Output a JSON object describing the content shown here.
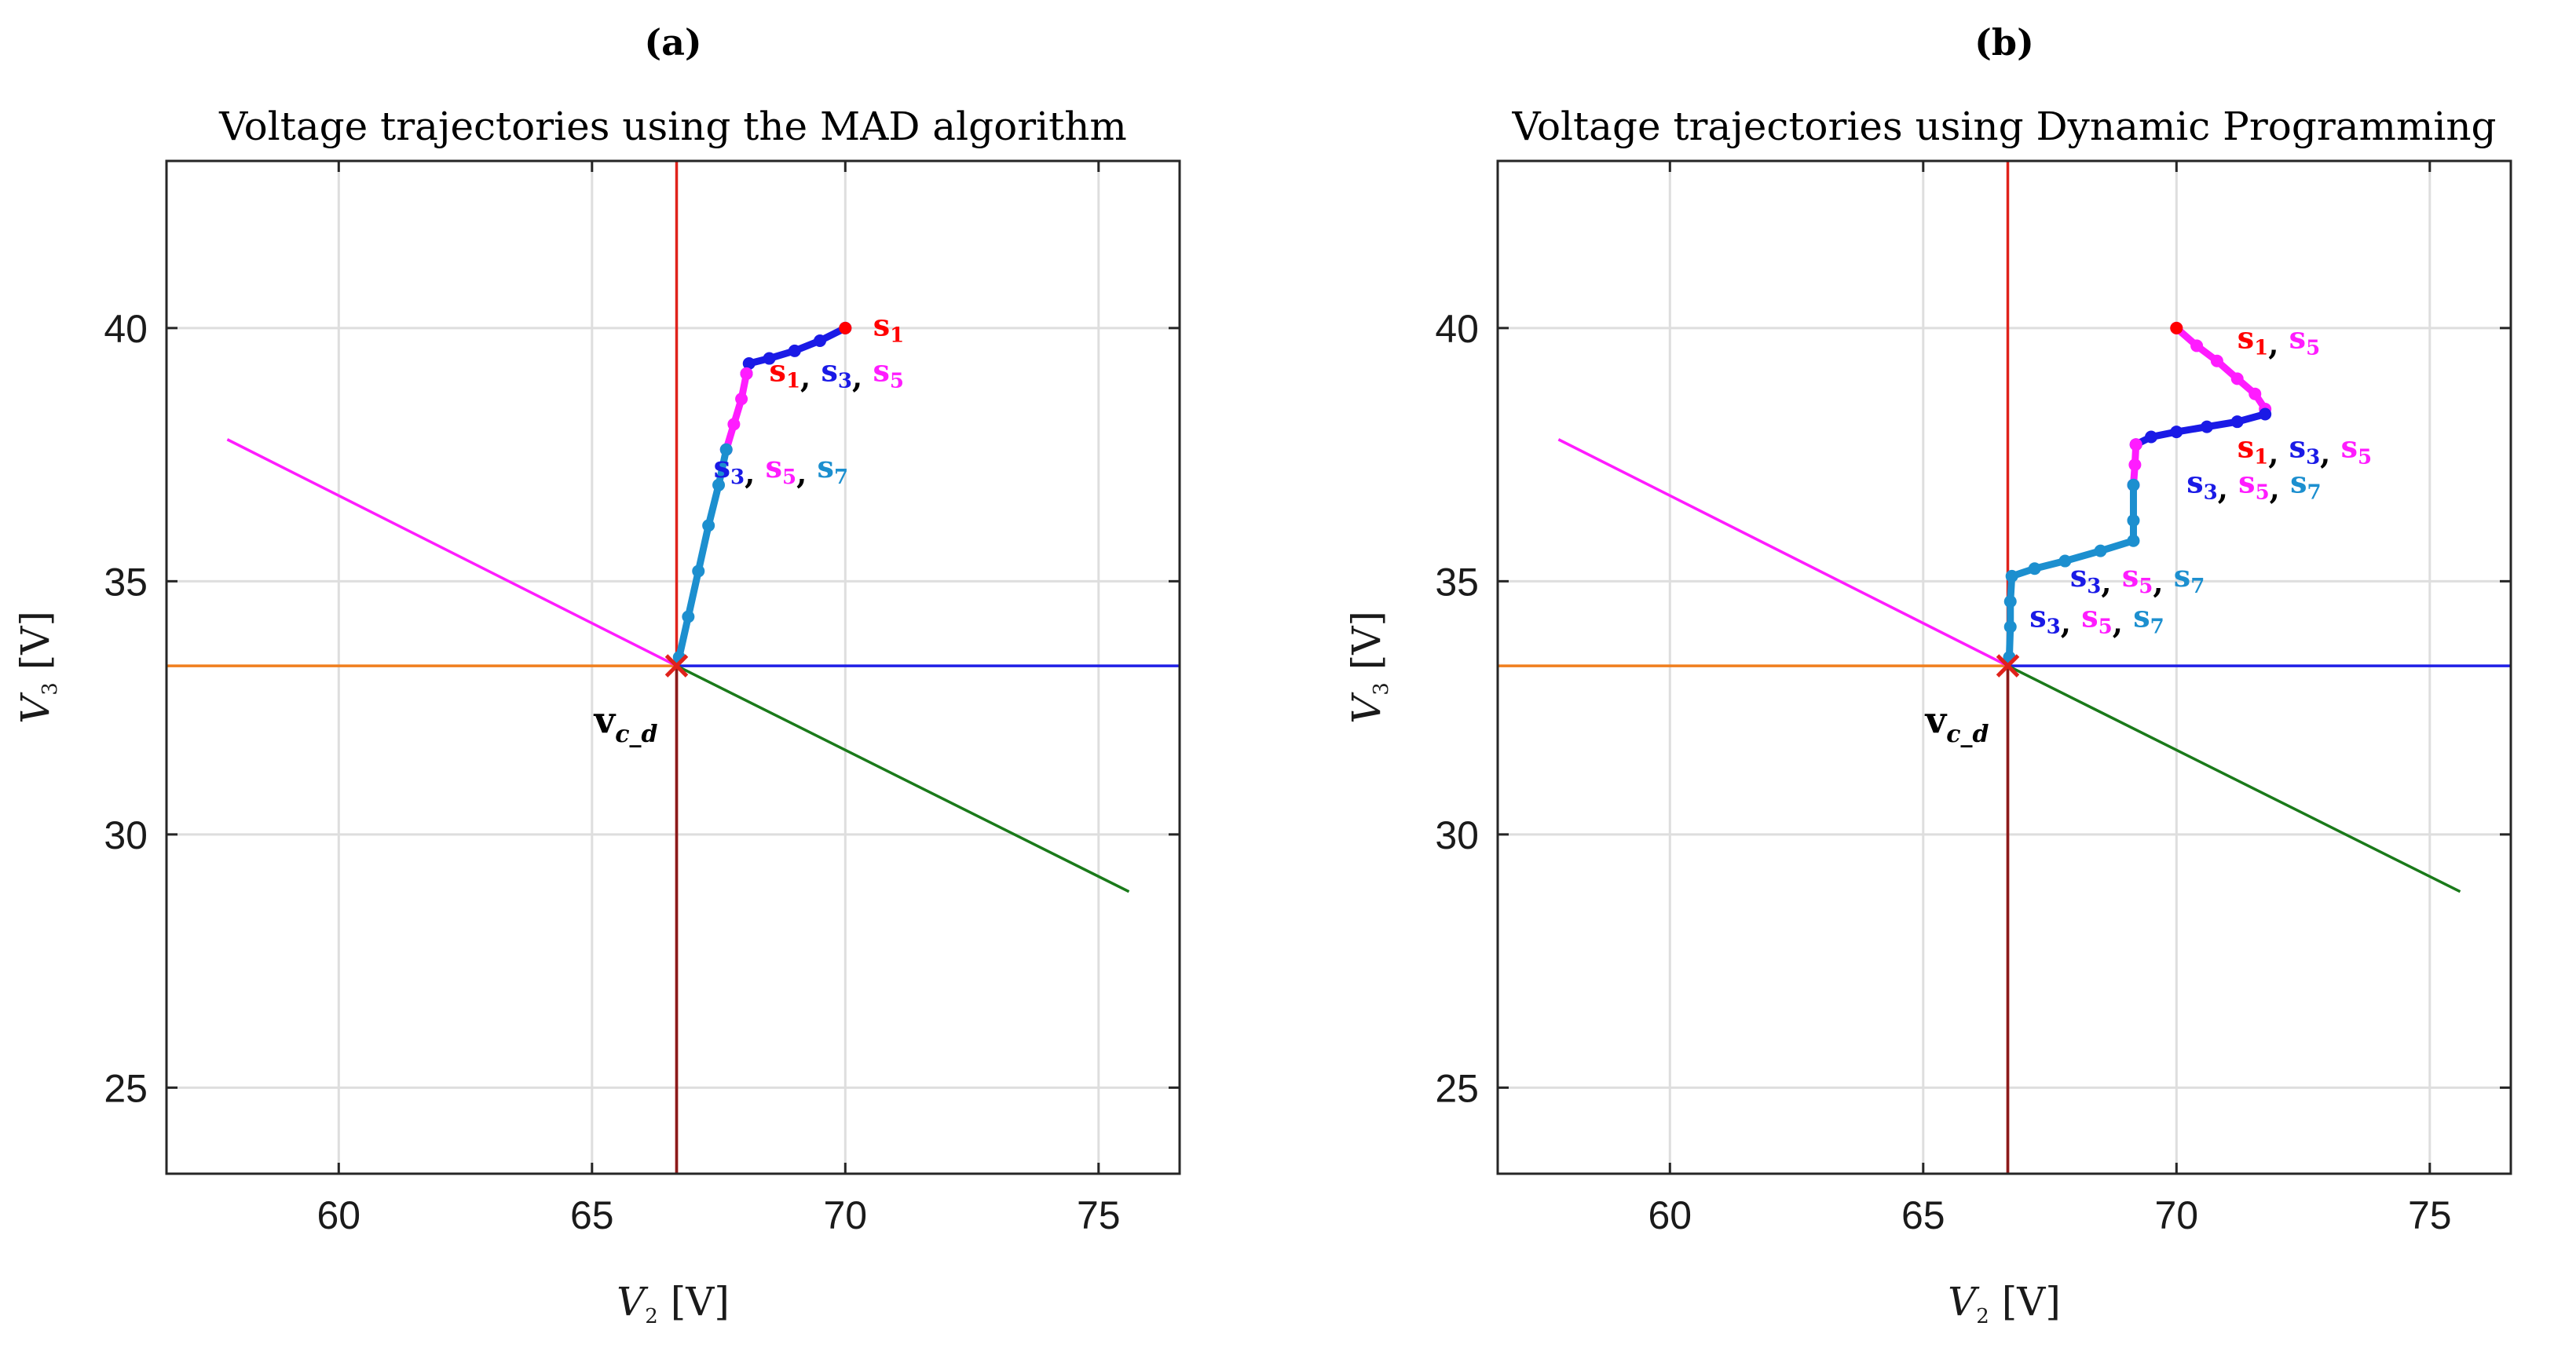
{
  "chart_data": [
    {
      "type": "line",
      "panel_label": "(a)",
      "title": "Voltage trajectories using the MAD algorithm",
      "xlabel": {
        "symbol": "V",
        "sub": "2",
        "unit": "[V]"
      },
      "ylabel": {
        "symbol": "V",
        "sub": "3",
        "unit": "[V]"
      },
      "xlim": [
        56.6,
        76.6
      ],
      "ylim": [
        23.3,
        43.3
      ],
      "xticks": [
        60,
        65,
        70,
        75
      ],
      "yticks": [
        25,
        30,
        35,
        40
      ],
      "grid": true,
      "target_point": {
        "name": "v",
        "sub": "c_d",
        "x": 66.67,
        "y": 33.33
      },
      "reference_lines": [
        {
          "name": "red vertical",
          "color": "#e0221b",
          "points": [
            [
              66.67,
              23.3
            ],
            [
              66.67,
              43.3
            ]
          ]
        },
        {
          "name": "dark red vertical",
          "color": "#8b1a1a",
          "points": [
            [
              66.67,
              23.3
            ],
            [
              66.67,
              33.33
            ]
          ]
        },
        {
          "name": "orange horizontal",
          "color": "#f07f1e",
          "points": [
            [
              56.6,
              33.33
            ],
            [
              66.67,
              33.33
            ]
          ]
        },
        {
          "name": "blue horizontal",
          "color": "#1f1fe6",
          "points": [
            [
              66.67,
              33.33
            ],
            [
              76.6,
              33.33
            ]
          ]
        },
        {
          "name": "magenta diagonal",
          "color": "#ff1cff",
          "points": [
            [
              57.8,
              37.8
            ],
            [
              66.67,
              33.33
            ]
          ]
        },
        {
          "name": "green diagonal",
          "color": "#1a7a1a",
          "points": [
            [
              66.67,
              33.33
            ],
            [
              75.6,
              28.87
            ]
          ]
        }
      ],
      "series": [
        {
          "name": "trajectory blue",
          "color": "#1a1ae6",
          "markers": true,
          "points": [
            [
              70.0,
              40.0
            ],
            [
              69.5,
              39.75
            ],
            [
              69.0,
              39.55
            ],
            [
              68.5,
              39.4
            ],
            [
              68.1,
              39.3
            ],
            [
              68.05,
              39.1
            ]
          ]
        },
        {
          "name": "trajectory magenta",
          "color": "#ff1cff",
          "markers": true,
          "points": [
            [
              68.05,
              39.1
            ],
            [
              67.95,
              38.6
            ],
            [
              67.8,
              38.1
            ],
            [
              67.65,
              37.6
            ]
          ]
        },
        {
          "name": "trajectory cyan",
          "color": "#1c8fcf",
          "markers": true,
          "points": [
            [
              67.65,
              37.6
            ],
            [
              67.5,
              36.9
            ],
            [
              67.3,
              36.1
            ],
            [
              67.1,
              35.2
            ],
            [
              66.9,
              34.3
            ],
            [
              66.72,
              33.5
            ]
          ]
        },
        {
          "name": "trajectory start",
          "color": "#ff0000",
          "markers": true,
          "points": [
            [
              70.0,
              40.0
            ]
          ]
        }
      ],
      "annotations": [
        {
          "x": 70.55,
          "y": 39.85,
          "parts": [
            [
              "s",
              "1",
              "#ff0000"
            ]
          ]
        },
        {
          "x": 68.5,
          "y": 38.95,
          "parts": [
            [
              "s",
              "1",
              "#ff0000"
            ],
            [
              "s",
              "3",
              "#1a1ae6"
            ],
            [
              "s",
              "5",
              "#ff1cff"
            ]
          ]
        },
        {
          "x": 67.4,
          "y": 37.05,
          "parts": [
            [
              "s",
              "3",
              "#1a1ae6"
            ],
            [
              "s",
              "5",
              "#ff1cff"
            ],
            [
              "s",
              "7",
              "#1c8fcf"
            ]
          ]
        }
      ]
    },
    {
      "type": "line",
      "panel_label": "(b)",
      "title": "Voltage trajectories using Dynamic Programming",
      "xlabel": {
        "symbol": "V",
        "sub": "2",
        "unit": "[V]"
      },
      "ylabel": {
        "symbol": "V",
        "sub": "3",
        "unit": "[V]"
      },
      "xlim": [
        56.6,
        76.6
      ],
      "ylim": [
        23.3,
        43.3
      ],
      "xticks": [
        60,
        65,
        70,
        75
      ],
      "yticks": [
        25,
        30,
        35,
        40
      ],
      "grid": true,
      "target_point": {
        "name": "v",
        "sub": "c_d",
        "x": 66.67,
        "y": 33.33
      },
      "reference_lines": [
        {
          "name": "red vertical",
          "color": "#e0221b",
          "points": [
            [
              66.67,
              23.3
            ],
            [
              66.67,
              43.3
            ]
          ]
        },
        {
          "name": "dark red vertical",
          "color": "#8b1a1a",
          "points": [
            [
              66.67,
              23.3
            ],
            [
              66.67,
              33.33
            ]
          ]
        },
        {
          "name": "orange horizontal",
          "color": "#f07f1e",
          "points": [
            [
              56.6,
              33.33
            ],
            [
              66.67,
              33.33
            ]
          ]
        },
        {
          "name": "blue horizontal",
          "color": "#1f1fe6",
          "points": [
            [
              66.67,
              33.33
            ],
            [
              76.6,
              33.33
            ]
          ]
        },
        {
          "name": "magenta diagonal",
          "color": "#ff1cff",
          "points": [
            [
              57.8,
              37.8
            ],
            [
              66.67,
              33.33
            ]
          ]
        },
        {
          "name": "green diagonal",
          "color": "#1a7a1a",
          "points": [
            [
              66.67,
              33.33
            ],
            [
              75.6,
              28.87
            ]
          ]
        }
      ],
      "series": [
        {
          "name": "trajectory magenta top",
          "color": "#ff1cff",
          "markers": true,
          "points": [
            [
              70.0,
              40.0
            ],
            [
              70.4,
              39.65
            ],
            [
              70.8,
              39.35
            ],
            [
              71.2,
              39.0
            ],
            [
              71.55,
              38.7
            ],
            [
              71.75,
              38.4
            ]
          ]
        },
        {
          "name": "trajectory blue",
          "color": "#1a1ae6",
          "markers": true,
          "points": [
            [
              71.75,
              38.3
            ],
            [
              71.2,
              38.15
            ],
            [
              70.6,
              38.05
            ],
            [
              70.0,
              37.95
            ],
            [
              69.5,
              37.85
            ],
            [
              69.2,
              37.7
            ]
          ]
        },
        {
          "name": "trajectory magenta mid",
          "color": "#ff1cff",
          "markers": true,
          "points": [
            [
              69.2,
              37.7
            ],
            [
              69.18,
              37.3
            ],
            [
              69.15,
              36.9
            ]
          ]
        },
        {
          "name": "trajectory cyan",
          "color": "#1c8fcf",
          "markers": true,
          "points": [
            [
              69.15,
              36.9
            ],
            [
              69.15,
              36.2
            ],
            [
              69.15,
              35.8
            ],
            [
              68.5,
              35.6
            ],
            [
              67.8,
              35.4
            ],
            [
              67.2,
              35.25
            ],
            [
              66.75,
              35.1
            ],
            [
              66.72,
              34.6
            ],
            [
              66.72,
              34.1
            ],
            [
              66.7,
              33.5
            ]
          ]
        },
        {
          "name": "trajectory start",
          "color": "#ff0000",
          "markers": true,
          "points": [
            [
              70.0,
              40.0
            ]
          ]
        }
      ],
      "annotations": [
        {
          "x": 71.2,
          "y": 39.6,
          "parts": [
            [
              "s",
              "1",
              "#ff0000"
            ],
            [
              "s",
              "5",
              "#ff1cff"
            ]
          ]
        },
        {
          "x": 71.2,
          "y": 37.45,
          "parts": [
            [
              "s",
              "1",
              "#ff0000"
            ],
            [
              "s",
              "3",
              "#1a1ae6"
            ],
            [
              "s",
              "5",
              "#ff1cff"
            ]
          ]
        },
        {
          "x": 70.2,
          "y": 36.75,
          "parts": [
            [
              "s",
              "3",
              "#1a1ae6"
            ],
            [
              "s",
              "5",
              "#ff1cff"
            ],
            [
              "s",
              "7",
              "#1c8fcf"
            ]
          ]
        },
        {
          "x": 67.9,
          "y": 34.9,
          "parts": [
            [
              "s",
              "3",
              "#1a1ae6"
            ],
            [
              "s",
              "5",
              "#ff1cff"
            ],
            [
              "s",
              "7",
              "#1c8fcf"
            ]
          ]
        },
        {
          "x": 67.1,
          "y": 34.1,
          "parts": [
            [
              "s",
              "3",
              "#1a1ae6"
            ],
            [
              "s",
              "5",
              "#ff1cff"
            ],
            [
              "s",
              "7",
              "#1c8fcf"
            ]
          ]
        }
      ]
    }
  ]
}
